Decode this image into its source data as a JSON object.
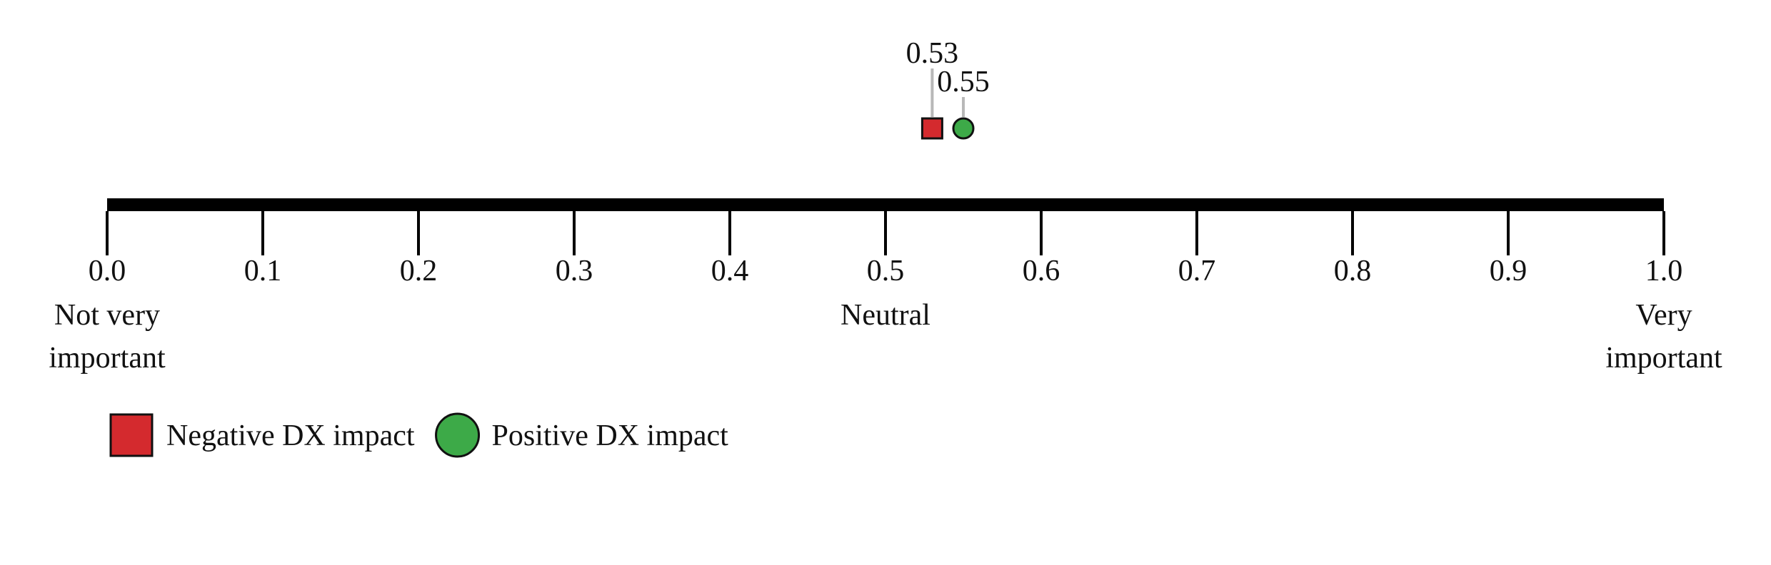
{
  "chart_data": {
    "type": "scatter",
    "xlim": [
      0.0,
      1.0
    ],
    "ticks": [
      {
        "value": 0.0,
        "label": "0.0"
      },
      {
        "value": 0.1,
        "label": "0.1"
      },
      {
        "value": 0.2,
        "label": "0.2"
      },
      {
        "value": 0.3,
        "label": "0.3"
      },
      {
        "value": 0.4,
        "label": "0.4"
      },
      {
        "value": 0.5,
        "label": "0.5"
      },
      {
        "value": 0.6,
        "label": "0.6"
      },
      {
        "value": 0.7,
        "label": "0.7"
      },
      {
        "value": 0.8,
        "label": "0.8"
      },
      {
        "value": 0.9,
        "label": "0.9"
      },
      {
        "value": 1.0,
        "label": "1.0"
      }
    ],
    "anchor_labels": [
      {
        "value": 0.0,
        "lines": [
          "Not very",
          "important"
        ]
      },
      {
        "value": 0.5,
        "lines": [
          "Neutral"
        ]
      },
      {
        "value": 1.0,
        "lines": [
          "Very",
          "important"
        ]
      }
    ],
    "series": [
      {
        "name": "Negative DX impact",
        "marker": "square",
        "color": "#d42a2e",
        "value": 0.53,
        "label": "0.53"
      },
      {
        "name": "Positive DX impact",
        "marker": "circle",
        "color": "#3daa48",
        "value": 0.55,
        "label": "0.55"
      }
    ],
    "legend_position": "bottom-left",
    "grid": false
  }
}
